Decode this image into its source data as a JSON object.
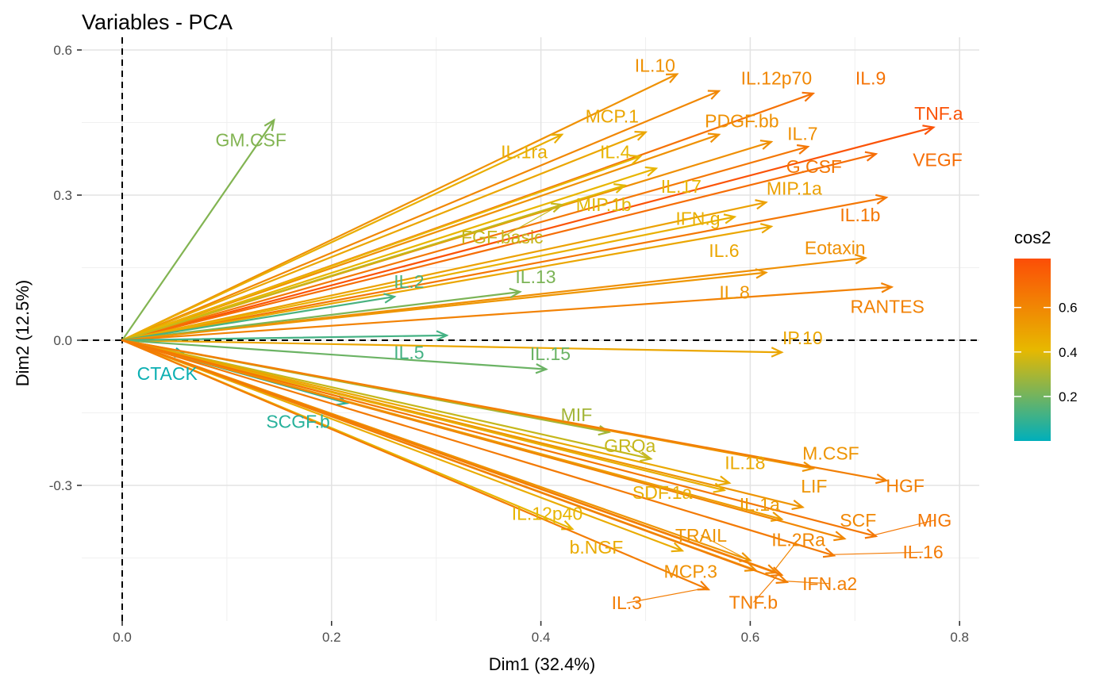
{
  "chart_data": {
    "type": "variable-correlation-biplot",
    "title": "Variables - PCA",
    "xlabel": "Dim1 (32.4%)",
    "ylabel": "Dim2 (12.5%)",
    "xlim": [
      0,
      0.82
    ],
    "ylim": [
      -0.57,
      0.62
    ],
    "x_ticks": [
      0.0,
      0.2,
      0.4,
      0.6,
      0.8
    ],
    "x_tick_labels": [
      "0.0",
      "0.2",
      "0.4",
      "0.6",
      "0.8"
    ],
    "y_ticks": [
      -0.3,
      0.0,
      0.3,
      0.6
    ],
    "y_tick_labels": [
      "-0.3",
      "0.0",
      "0.3",
      "0.6"
    ],
    "grid": true,
    "origin_lines": "dashed",
    "legend": {
      "title": "cos2",
      "placement": "right",
      "ticks": [
        0.2,
        0.4,
        0.6
      ],
      "tick_labels": [
        "0.2",
        "0.4",
        "0.6"
      ],
      "range": [
        0.0,
        0.82
      ],
      "colors": [
        "#00AFBB",
        "#E7B800",
        "#FC4E07"
      ]
    },
    "variables": [
      {
        "name": "IL.10",
        "x": 0.53,
        "y": 0.55,
        "cos2": 0.56,
        "lx": 0.509,
        "ly": 0.568
      },
      {
        "name": "IL.12p70",
        "x": 0.57,
        "y": 0.515,
        "cos2": 0.6,
        "lx": 0.625,
        "ly": 0.542
      },
      {
        "name": "IL.9",
        "x": 0.66,
        "y": 0.51,
        "cos2": 0.68,
        "lx": 0.715,
        "ly": 0.542
      },
      {
        "name": "TNF.a",
        "x": 0.775,
        "y": 0.44,
        "cos2": 0.8,
        "lx": 0.78,
        "ly": 0.469
      },
      {
        "name": "GM.CSF",
        "x": 0.145,
        "y": 0.455,
        "cos2": 0.23,
        "lx": 0.123,
        "ly": 0.414
      },
      {
        "name": "MCP.1",
        "x": 0.5,
        "y": 0.43,
        "cos2": 0.48,
        "lx": 0.468,
        "ly": 0.463
      },
      {
        "name": "PDGF.bb",
        "x": 0.57,
        "y": 0.425,
        "cos2": 0.56,
        "lx": 0.592,
        "ly": 0.453
      },
      {
        "name": "IL.1ra",
        "x": 0.42,
        "y": 0.425,
        "cos2": 0.45,
        "lx": 0.384,
        "ly": 0.389
      },
      {
        "name": "IL.4",
        "x": 0.495,
        "y": 0.38,
        "cos2": 0.42,
        "lx": 0.471,
        "ly": 0.389
      },
      {
        "name": "IL.7",
        "x": 0.62,
        "y": 0.41,
        "cos2": 0.57,
        "lx": 0.65,
        "ly": 0.427
      },
      {
        "name": "G.CSF",
        "x": 0.655,
        "y": 0.4,
        "cos2": 0.66,
        "lx": 0.661,
        "ly": 0.359
      },
      {
        "name": "VEGF",
        "x": 0.72,
        "y": 0.385,
        "cos2": 0.7,
        "lx": 0.779,
        "ly": 0.373
      },
      {
        "name": "IL.17",
        "x": 0.51,
        "y": 0.355,
        "cos2": 0.42,
        "lx": 0.534,
        "ly": 0.318
      },
      {
        "name": "MIP.1a",
        "x": 0.615,
        "y": 0.285,
        "cos2": 0.5,
        "lx": 0.642,
        "ly": 0.314
      },
      {
        "name": "IL.1b",
        "x": 0.73,
        "y": 0.295,
        "cos2": 0.66,
        "lx": 0.705,
        "ly": 0.259
      },
      {
        "name": "MIP.1b",
        "x": 0.48,
        "y": 0.32,
        "cos2": 0.4,
        "lx": 0.46,
        "ly": 0.28
      },
      {
        "name": "IFN.g",
        "x": 0.585,
        "y": 0.255,
        "cos2": 0.44,
        "lx": 0.55,
        "ly": 0.252
      },
      {
        "name": "FGF.basic",
        "x": 0.42,
        "y": 0.28,
        "cos2": 0.35,
        "lx": 0.363,
        "ly": 0.213,
        "leader": true
      },
      {
        "name": "IL.6",
        "x": 0.62,
        "y": 0.235,
        "cos2": 0.48,
        "lx": 0.575,
        "ly": 0.185
      },
      {
        "name": "Eotaxin",
        "x": 0.71,
        "y": 0.17,
        "cos2": 0.57,
        "lx": 0.681,
        "ly": 0.191
      },
      {
        "name": "IL.2",
        "x": 0.26,
        "y": 0.09,
        "cos2": 0.13,
        "lx": 0.274,
        "ly": 0.121
      },
      {
        "name": "IL.13",
        "x": 0.38,
        "y": 0.1,
        "cos2": 0.22,
        "lx": 0.395,
        "ly": 0.131
      },
      {
        "name": "IL.8",
        "x": 0.615,
        "y": 0.14,
        "cos2": 0.54,
        "lx": 0.585,
        "ly": 0.099
      },
      {
        "name": "RANTES",
        "x": 0.735,
        "y": 0.11,
        "cos2": 0.62,
        "lx": 0.731,
        "ly": 0.07
      },
      {
        "name": "IP.10",
        "x": 0.63,
        "y": -0.025,
        "cos2": 0.48,
        "lx": 0.65,
        "ly": 0.005
      },
      {
        "name": "IL.5",
        "x": 0.31,
        "y": 0.01,
        "cos2": 0.12,
        "lx": 0.274,
        "ly": -0.025
      },
      {
        "name": "IL.15",
        "x": 0.405,
        "y": -0.06,
        "cos2": 0.19,
        "lx": 0.409,
        "ly": -0.028
      },
      {
        "name": "CTACK",
        "x": 0.06,
        "y": -0.03,
        "cos2": 0.02,
        "lx": 0.043,
        "ly": -0.069
      },
      {
        "name": "SCGF.b",
        "x": 0.215,
        "y": -0.13,
        "cos2": 0.07,
        "lx": 0.168,
        "ly": -0.168
      },
      {
        "name": "MIF",
        "x": 0.465,
        "y": -0.19,
        "cos2": 0.29,
        "lx": 0.434,
        "ly": -0.154
      },
      {
        "name": "GROa",
        "x": 0.505,
        "y": -0.245,
        "cos2": 0.35,
        "lx": 0.485,
        "ly": -0.218,
        "leader": true
      },
      {
        "name": "M.CSF",
        "x": 0.66,
        "y": -0.265,
        "cos2": 0.55,
        "lx": 0.677,
        "ly": -0.234
      },
      {
        "name": "IL.18",
        "x": 0.58,
        "y": -0.295,
        "cos2": 0.47,
        "lx": 0.595,
        "ly": -0.253
      },
      {
        "name": "HGF",
        "x": 0.73,
        "y": -0.29,
        "cos2": 0.63,
        "lx": 0.748,
        "ly": -0.301
      },
      {
        "name": "LIF",
        "x": 0.65,
        "y": -0.345,
        "cos2": 0.55,
        "lx": 0.661,
        "ly": -0.302
      },
      {
        "name": "SDF.1a",
        "x": 0.575,
        "y": -0.31,
        "cos2": 0.45,
        "lx": 0.516,
        "ly": -0.315
      },
      {
        "name": "IL.1a",
        "x": 0.63,
        "y": -0.37,
        "cos2": 0.52,
        "lx": 0.609,
        "ly": -0.339
      },
      {
        "name": "SCF",
        "x": 0.69,
        "y": -0.41,
        "cos2": 0.6,
        "lx": 0.703,
        "ly": -0.372
      },
      {
        "name": "MIG",
        "x": 0.72,
        "y": -0.405,
        "cos2": 0.66,
        "lx": 0.776,
        "ly": -0.372,
        "leader": true
      },
      {
        "name": "IL.12p40",
        "x": 0.43,
        "y": -0.39,
        "cos2": 0.42,
        "lx": 0.406,
        "ly": -0.358
      },
      {
        "name": "TRAIL",
        "x": 0.6,
        "y": -0.455,
        "cos2": 0.55,
        "lx": 0.553,
        "ly": -0.403,
        "leader": true
      },
      {
        "name": "IL.2Ra",
        "x": 0.625,
        "y": -0.48,
        "cos2": 0.6,
        "lx": 0.646,
        "ly": -0.412,
        "leader": true
      },
      {
        "name": "IL.16",
        "x": 0.68,
        "y": -0.445,
        "cos2": 0.65,
        "lx": 0.765,
        "ly": -0.438,
        "leader": true
      },
      {
        "name": "b.NGF",
        "x": 0.535,
        "y": -0.435,
        "cos2": 0.46,
        "lx": 0.453,
        "ly": -0.428
      },
      {
        "name": "MCP.3",
        "x": 0.605,
        "y": -0.475,
        "cos2": 0.56,
        "lx": 0.543,
        "ly": -0.478
      },
      {
        "name": "IFN.a2",
        "x": 0.635,
        "y": -0.5,
        "cos2": 0.63,
        "lx": 0.676,
        "ly": -0.503,
        "leader": true
      },
      {
        "name": "IL.3",
        "x": 0.56,
        "y": -0.515,
        "cos2": 0.64,
        "lx": 0.482,
        "ly": -0.543,
        "leader": true
      },
      {
        "name": "TNF.b",
        "x": 0.63,
        "y": -0.485,
        "cos2": 0.64,
        "lx": 0.603,
        "ly": -0.542,
        "leader": true
      }
    ]
  }
}
